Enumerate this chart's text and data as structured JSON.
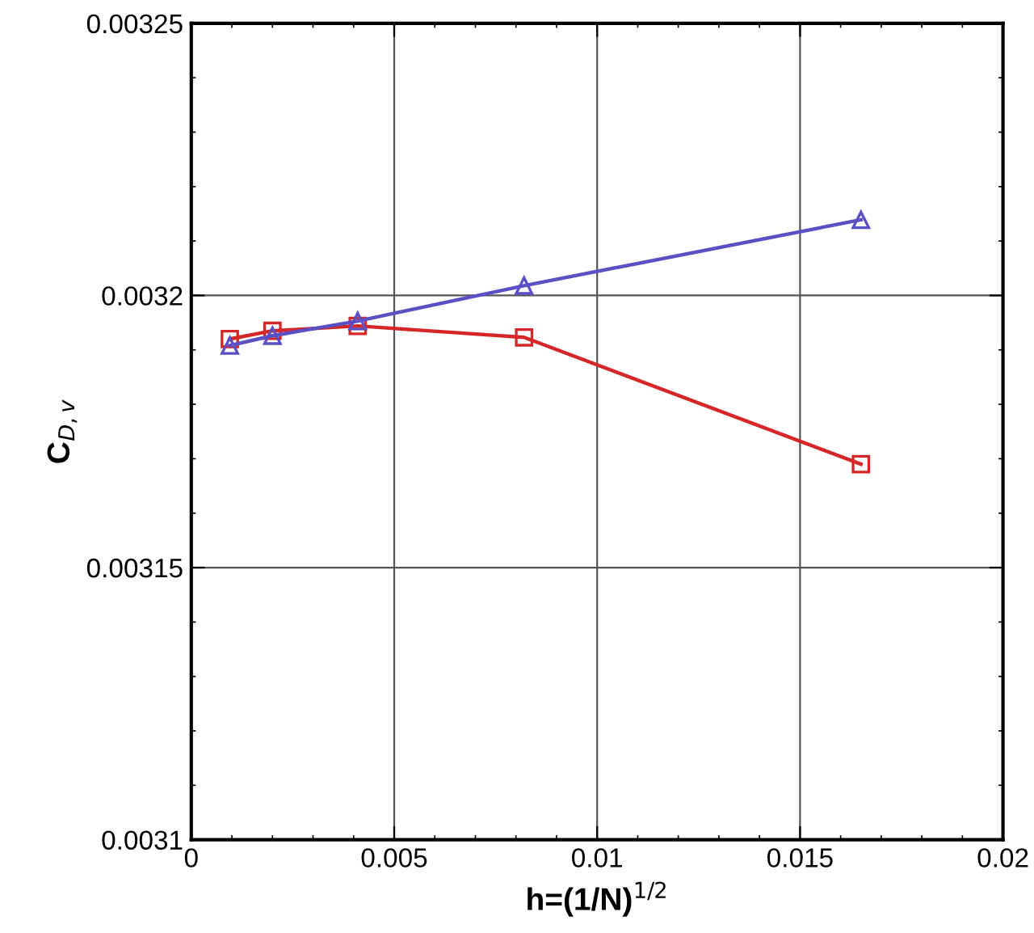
{
  "chart_data": {
    "type": "line",
    "xlabel": "h=(1/N)$^{1/2}$",
    "ylabel": "C$_{D,v}$",
    "x": [
      0.00095,
      0.002,
      0.0041,
      0.0082,
      0.0165
    ],
    "series": [
      {
        "color": "#d62728",
        "marker": "square",
        "values": [
          0.003192,
          0.0031935,
          0.0031944,
          0.0031923,
          0.003169
        ]
      },
      {
        "color": "#5b4fc4",
        "marker": "triangle",
        "values": [
          0.0031908,
          0.0031926,
          0.0031953,
          0.0032018,
          0.0032139
        ]
      }
    ],
    "xlim": [
      0,
      0.02
    ],
    "xticks": [
      0,
      0.005,
      0.01,
      0.015,
      0.02
    ],
    "ylim": [
      0.0031,
      0.00325
    ],
    "yticks": [
      0.0031,
      0.00315,
      0.0032,
      0.00325
    ],
    "grid": true,
    "line_style": "solid"
  }
}
